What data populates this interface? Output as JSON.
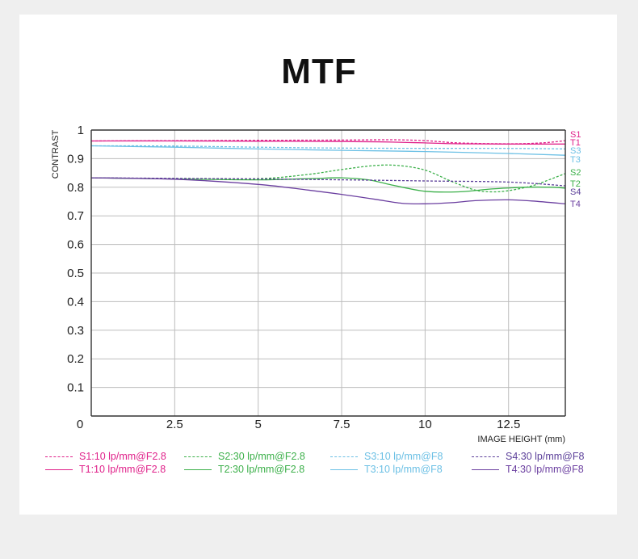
{
  "page": {
    "title": "MTF"
  },
  "chart_data": {
    "type": "line",
    "title": "MTF",
    "xlabel": "IMAGE HEIGHT  (mm)",
    "ylabel": "CONTRAST",
    "xlim": [
      0,
      14.2
    ],
    "ylim": [
      0,
      1
    ],
    "x_ticks": [
      "0",
      "2.5",
      "5",
      "7.5",
      "10",
      "12.5"
    ],
    "y_ticks": [
      "0.1",
      "0.2",
      "0.3",
      "0.4",
      "0.5",
      "0.6",
      "0.7",
      "0.8",
      "0.9",
      "1"
    ],
    "grid": true,
    "series": [
      {
        "name": "S1:10 lp/mm@F2.8",
        "end_label": "S1",
        "color": "#e0218a",
        "dashed": true,
        "points": [
          [
            0,
            0.962
          ],
          [
            2.5,
            0.963
          ],
          [
            5,
            0.964
          ],
          [
            7.5,
            0.965
          ],
          [
            9,
            0.966
          ],
          [
            10,
            0.963
          ],
          [
            11,
            0.955
          ],
          [
            12.5,
            0.952
          ],
          [
            13.5,
            0.955
          ],
          [
            14.2,
            0.963
          ]
        ]
      },
      {
        "name": "T1:10 lp/mm@F2.8",
        "end_label": "T1",
        "color": "#e0218a",
        "dashed": false,
        "points": [
          [
            0,
            0.962
          ],
          [
            2.5,
            0.962
          ],
          [
            5,
            0.961
          ],
          [
            7.5,
            0.96
          ],
          [
            9,
            0.958
          ],
          [
            10,
            0.955
          ],
          [
            11,
            0.952
          ],
          [
            12.5,
            0.951
          ],
          [
            14.2,
            0.951
          ]
        ]
      },
      {
        "name": "S2:30 lp/mm@F2.8",
        "end_label": "S2",
        "color": "#3cb04a",
        "dashed": true,
        "points": [
          [
            0,
            0.833
          ],
          [
            2.5,
            0.83
          ],
          [
            5,
            0.83
          ],
          [
            6.5,
            0.845
          ],
          [
            7.5,
            0.862
          ],
          [
            8.5,
            0.876
          ],
          [
            9.2,
            0.876
          ],
          [
            10,
            0.86
          ],
          [
            10.8,
            0.82
          ],
          [
            11.5,
            0.79
          ],
          [
            12,
            0.784
          ],
          [
            12.5,
            0.788
          ],
          [
            13.2,
            0.805
          ],
          [
            13.8,
            0.83
          ],
          [
            14.2,
            0.848
          ]
        ]
      },
      {
        "name": "T2:30 lp/mm@F2.8",
        "end_label": "T2",
        "color": "#3cb04a",
        "dashed": false,
        "points": [
          [
            0,
            0.833
          ],
          [
            2.5,
            0.829
          ],
          [
            5,
            0.826
          ],
          [
            6.5,
            0.83
          ],
          [
            7.5,
            0.833
          ],
          [
            8.3,
            0.826
          ],
          [
            9,
            0.808
          ],
          [
            10,
            0.786
          ],
          [
            11,
            0.784
          ],
          [
            12,
            0.794
          ],
          [
            13,
            0.8
          ],
          [
            13.8,
            0.8
          ],
          [
            14.2,
            0.797
          ]
        ]
      },
      {
        "name": "S3:10 lp/mm@F8",
        "end_label": "S3",
        "color": "#6cc0e5",
        "dashed": true,
        "points": [
          [
            0,
            0.945
          ],
          [
            2.5,
            0.944
          ],
          [
            5,
            0.94
          ],
          [
            7.5,
            0.937
          ],
          [
            10,
            0.936
          ],
          [
            12.5,
            0.936
          ],
          [
            14.2,
            0.934
          ]
        ]
      },
      {
        "name": "T3:10 lp/mm@F8",
        "end_label": "T3",
        "color": "#6cc0e5",
        "dashed": false,
        "points": [
          [
            0,
            0.945
          ],
          [
            2.5,
            0.94
          ],
          [
            5,
            0.934
          ],
          [
            7.5,
            0.929
          ],
          [
            10,
            0.925
          ],
          [
            12.5,
            0.918
          ],
          [
            14.2,
            0.912
          ]
        ]
      },
      {
        "name": "S4:30 lp/mm@F8",
        "end_label": "S4",
        "color": "#5b3f99",
        "dashed": true,
        "points": [
          [
            0,
            0.833
          ],
          [
            2.5,
            0.831
          ],
          [
            5,
            0.829
          ],
          [
            7.5,
            0.826
          ],
          [
            10,
            0.822
          ],
          [
            12.5,
            0.818
          ],
          [
            14.2,
            0.805
          ]
        ]
      },
      {
        "name": "T4:30 lp/mm@F8",
        "end_label": "T4",
        "color": "#6b3fa0",
        "dashed": false,
        "points": [
          [
            0,
            0.833
          ],
          [
            2.5,
            0.828
          ],
          [
            5,
            0.81
          ],
          [
            6.5,
            0.79
          ],
          [
            7.5,
            0.775
          ],
          [
            8.5,
            0.758
          ],
          [
            9.3,
            0.744
          ],
          [
            10,
            0.742
          ],
          [
            10.8,
            0.746
          ],
          [
            11.5,
            0.753
          ],
          [
            12.5,
            0.756
          ],
          [
            13.2,
            0.752
          ],
          [
            14.2,
            0.742
          ]
        ]
      }
    ]
  }
}
